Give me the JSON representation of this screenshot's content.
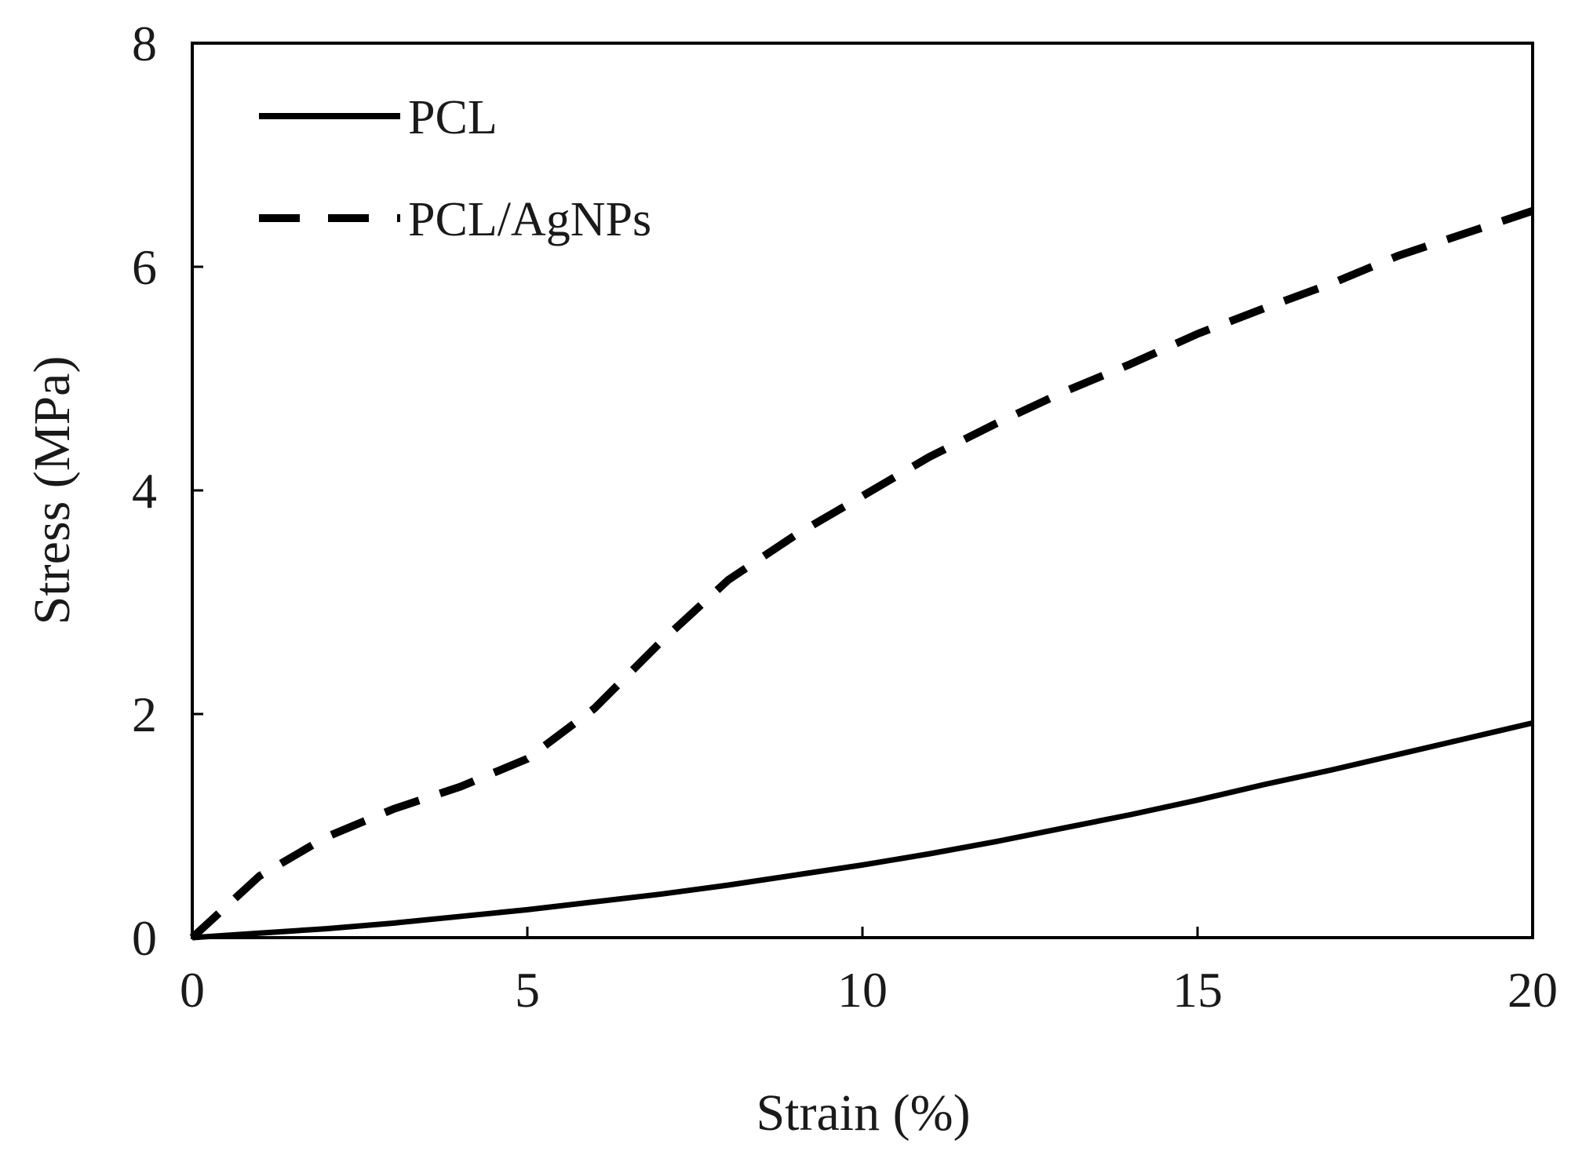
{
  "chart_data": {
    "type": "line",
    "title": "",
    "xlabel": "Strain (%)",
    "ylabel": "Stress (MPa)",
    "xlim": [
      0,
      20
    ],
    "ylim": [
      0,
      8
    ],
    "xticks": [
      0,
      5,
      10,
      15,
      20
    ],
    "yticks": [
      0,
      2,
      4,
      6,
      8
    ],
    "xtick_labels": [
      "0",
      "5",
      "10",
      "15",
      "20"
    ],
    "ytick_labels": [
      "0",
      "2",
      "4",
      "6",
      "8"
    ],
    "grid": false,
    "legend_position": "top-left",
    "series": [
      {
        "name": "PCL",
        "style": "solid",
        "color": "#000000",
        "x": [
          0,
          1,
          2,
          3,
          4,
          5,
          6,
          7,
          8,
          9,
          10,
          11,
          12,
          13,
          14,
          15,
          16,
          17,
          18,
          19,
          20
        ],
        "y": [
          0,
          0.04,
          0.08,
          0.13,
          0.19,
          0.25,
          0.32,
          0.39,
          0.47,
          0.56,
          0.65,
          0.75,
          0.86,
          0.98,
          1.1,
          1.23,
          1.37,
          1.5,
          1.64,
          1.78,
          1.92
        ]
      },
      {
        "name": "PCL/AgNPs",
        "style": "dashed",
        "color": "#000000",
        "x": [
          0,
          1,
          2,
          3,
          4,
          5,
          6,
          7,
          8,
          9,
          10,
          11,
          12,
          13,
          14,
          15,
          16,
          17,
          18,
          19,
          20
        ],
        "y": [
          0,
          0.55,
          0.9,
          1.15,
          1.35,
          1.6,
          2.05,
          2.65,
          3.2,
          3.6,
          3.95,
          4.3,
          4.6,
          4.88,
          5.13,
          5.4,
          5.63,
          5.85,
          6.1,
          6.3,
          6.5
        ]
      }
    ]
  }
}
